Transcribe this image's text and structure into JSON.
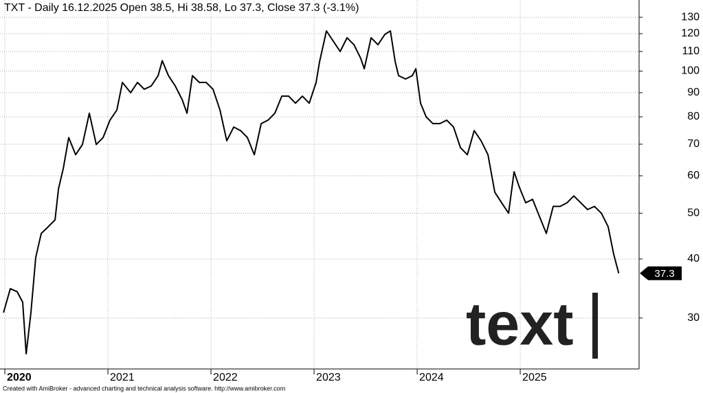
{
  "chart_data": {
    "type": "line",
    "title": "TXT - Daily 16.12.2025 Open 38.5, Hi 38.58, Lo 37.3, Close 37.3 (-3.1%)",
    "watermark": "text",
    "footer": "Created with AmiBroker - advanced charting and technical analysis software. http://www.amibroker.com",
    "log_scale": true,
    "grid": true,
    "series": [
      {
        "name": "TXT",
        "color": "#000000",
        "x": [
          2019.987,
          2020.053,
          2020.12,
          2020.173,
          2020.207,
          2020.253,
          2020.3,
          2020.353,
          2020.42,
          2020.487,
          2020.52,
          2020.567,
          2020.62,
          2020.687,
          2020.753,
          2020.82,
          2020.887,
          2020.953,
          2021.02,
          2021.087,
          2021.14,
          2021.22,
          2021.287,
          2021.353,
          2021.42,
          2021.487,
          2021.527,
          2021.587,
          2021.653,
          2021.72,
          2021.767,
          2021.82,
          2021.887,
          2021.953,
          2022.02,
          2022.087,
          2022.153,
          2022.22,
          2022.287,
          2022.353,
          2022.42,
          2022.487,
          2022.553,
          2022.62,
          2022.687,
          2022.753,
          2022.82,
          2022.887,
          2022.953,
          2023.02,
          2023.053,
          2023.12,
          2023.187,
          2023.253,
          2023.32,
          2023.387,
          2023.453,
          2023.487,
          2023.553,
          2023.62,
          2023.687,
          2023.74,
          2023.787,
          2023.82,
          2023.887,
          2023.953,
          2023.987,
          2024.033,
          2024.087,
          2024.153,
          2024.22,
          2024.287,
          2024.353,
          2024.42,
          2024.487,
          2024.553,
          2024.62,
          2024.687,
          2024.753,
          2024.82,
          2024.887,
          2024.94,
          2024.987,
          2025.053,
          2025.12,
          2025.187,
          2025.253,
          2025.32,
          2025.387,
          2025.453,
          2025.52,
          2025.587,
          2025.653,
          2025.72,
          2025.787,
          2025.853,
          2025.907,
          2025.956
        ],
        "values": [
          30.8,
          34.6,
          34.1,
          32.4,
          25.2,
          30.8,
          40.3,
          45.3,
          46.8,
          48.4,
          56.3,
          62.2,
          72.3,
          66.5,
          69.9,
          81.4,
          69.9,
          72.3,
          78.7,
          82.7,
          94.6,
          90.0,
          94.6,
          91.5,
          93.0,
          97.8,
          105.2,
          97.8,
          93.0,
          87.0,
          81.4,
          97.8,
          94.6,
          94.6,
          91.5,
          82.7,
          71.2,
          76.1,
          74.8,
          72.3,
          66.5,
          77.4,
          78.7,
          81.4,
          88.5,
          88.5,
          85.5,
          88.5,
          85.5,
          94.6,
          104.6,
          121.6,
          115.6,
          110.0,
          117.6,
          113.7,
          106.3,
          101.1,
          117.6,
          113.7,
          119.6,
          121.6,
          104.6,
          97.8,
          96.2,
          97.8,
          101.1,
          85.5,
          80.0,
          77.4,
          77.4,
          78.7,
          76.1,
          68.8,
          66.5,
          74.8,
          71.2,
          66.5,
          55.4,
          52.6,
          50.0,
          61.2,
          57.1,
          52.6,
          53.5,
          49.2,
          45.3,
          51.7,
          51.7,
          52.6,
          54.4,
          52.6,
          50.9,
          51.7,
          50.0,
          46.8,
          40.9,
          37.3
        ]
      }
    ],
    "xlim": [
      2019.953,
      2026.153
    ],
    "xticks": [
      2020,
      2021,
      2022,
      2023,
      2024,
      2025
    ],
    "ylim": [
      23.4,
      141.4
    ],
    "yticks": [
      30,
      40,
      50,
      60,
      70,
      80,
      90,
      100,
      110,
      120,
      130
    ]
  }
}
